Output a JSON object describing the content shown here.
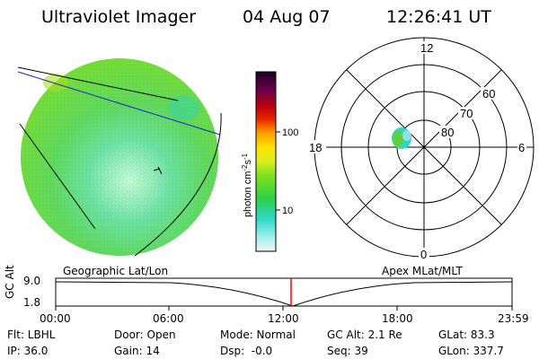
{
  "header": {
    "instrument": "Ultraviolet Imager",
    "date": "04 Aug 07",
    "time": "12:26:41 UT"
  },
  "colorbar": {
    "unit_label": "photon cm",
    "unit_exp1": "-2",
    "unit_s": "s",
    "unit_exp2": "-1",
    "ticks": [
      "100",
      "10"
    ]
  },
  "polar": {
    "mlt_labels": [
      "12",
      "18",
      "6",
      "0"
    ],
    "lat_labels": [
      "60",
      "70",
      "80"
    ]
  },
  "timeline": {
    "ylabel": "GC Alt",
    "left_title": "Geographic Lat/Lon",
    "right_title": "Apex MLat/MLT",
    "ytick_top": "9.0",
    "ytick_bottom": "1.8",
    "xticks": [
      "00:00",
      "06:00",
      "12:00",
      "18:00",
      "23:59"
    ],
    "marker_color": "#ff0000"
  },
  "status": {
    "row1": [
      "Flt: LBHL",
      "Door: Open",
      "Mode: Normal",
      "GC Alt: 2.1 Re",
      "GLat: 83.3"
    ],
    "row2": [
      "IP: 36.0",
      "Gain: 14",
      "Dsp:  -0.0",
      "Seq: 39",
      "GLon: 337.7"
    ]
  }
}
